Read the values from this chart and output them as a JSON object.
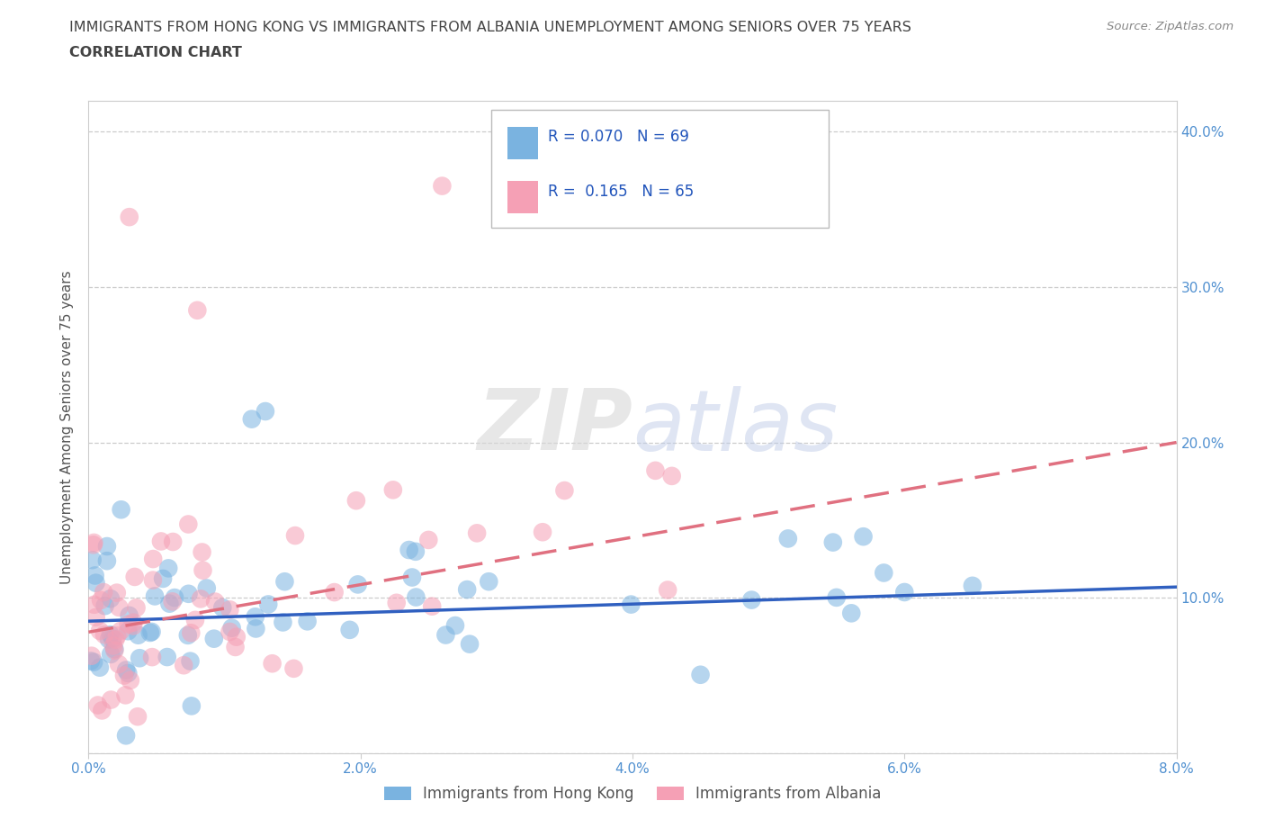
{
  "title_line1": "IMMIGRANTS FROM HONG KONG VS IMMIGRANTS FROM ALBANIA UNEMPLOYMENT AMONG SENIORS OVER 75 YEARS",
  "title_line2": "CORRELATION CHART",
  "source": "Source: ZipAtlas.com",
  "ylabel": "Unemployment Among Seniors over 75 years",
  "xlim": [
    0.0,
    0.08
  ],
  "ylim": [
    0.0,
    0.42
  ],
  "xtick_vals": [
    0.0,
    0.02,
    0.04,
    0.06,
    0.08
  ],
  "xtick_labels": [
    "0.0%",
    "2.0%",
    "4.0%",
    "6.0%",
    "8.0%"
  ],
  "ytick_vals": [
    0.0,
    0.1,
    0.2,
    0.3,
    0.4
  ],
  "ytick_labels_left": [
    "",
    "",
    "",
    "",
    ""
  ],
  "ytick_labels_right": [
    "",
    "10.0%",
    "20.0%",
    "30.0%",
    "40.0%"
  ],
  "hk_color": "#7ab3e0",
  "alb_color": "#f5a0b5",
  "hk_line_color": "#3060c0",
  "alb_line_color": "#e07080",
  "legend_label_hk": "Immigrants from Hong Kong",
  "legend_label_alb": "Immigrants from Albania",
  "watermark1": "ZIP",
  "watermark2": "atlas",
  "title_color": "#444444",
  "axis_label_color": "#555555",
  "tick_color": "#5090d0",
  "grid_color": "#cccccc",
  "source_color": "#888888",
  "hk_line_x": [
    0.0,
    0.08
  ],
  "hk_line_y": [
    0.085,
    0.107
  ],
  "alb_line_x": [
    0.0,
    0.08
  ],
  "alb_line_y": [
    0.078,
    0.2
  ]
}
